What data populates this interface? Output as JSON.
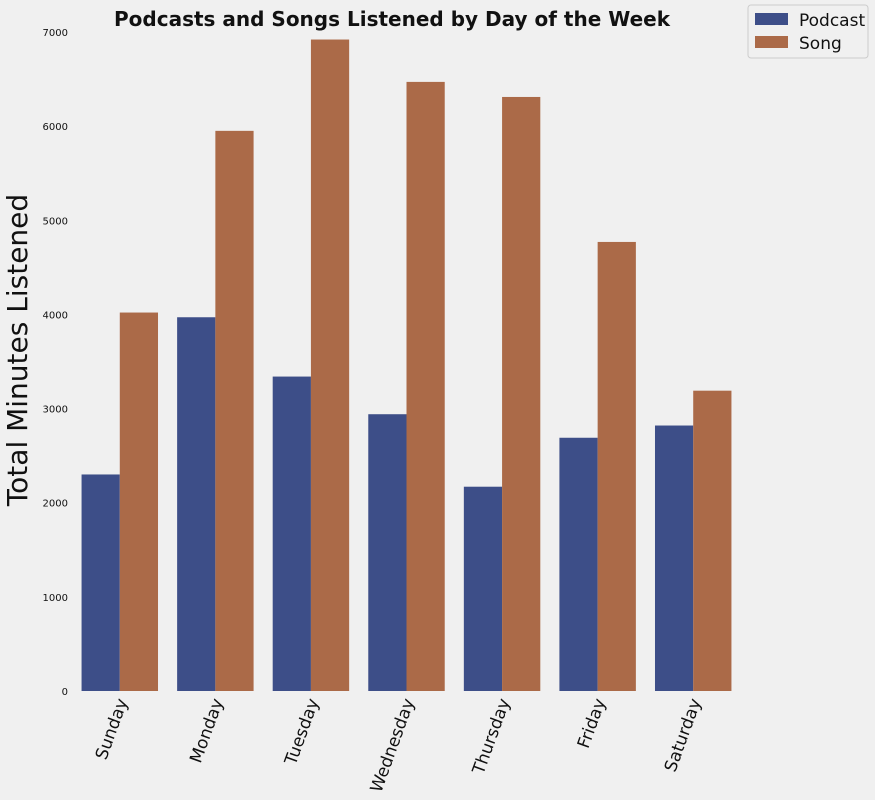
{
  "chart_data": {
    "type": "bar",
    "title": "Podcasts and Songs Listened by Day of the Week",
    "xlabel": "",
    "ylabel": "Total Minutes Listened",
    "categories": [
      "Sunday",
      "Monday",
      "Tuesday",
      "Wednesday",
      "Thursday",
      "Friday",
      "Saturday"
    ],
    "series": [
      {
        "name": "Podcast",
        "color": "#3d4e88",
        "values": [
          2300,
          3970,
          3340,
          2940,
          2170,
          2690,
          2820
        ]
      },
      {
        "name": "Song",
        "color": "#ab6a48",
        "values": [
          4020,
          5950,
          6920,
          6470,
          6310,
          4770,
          3190
        ]
      }
    ],
    "ylim": [
      0,
      7000
    ],
    "yticks": [
      "0",
      "1000",
      "2000",
      "3000",
      "4000",
      "5000",
      "6000",
      "7000"
    ],
    "grid": false,
    "legend_position": "top-right",
    "background": "#f0f0f0"
  }
}
